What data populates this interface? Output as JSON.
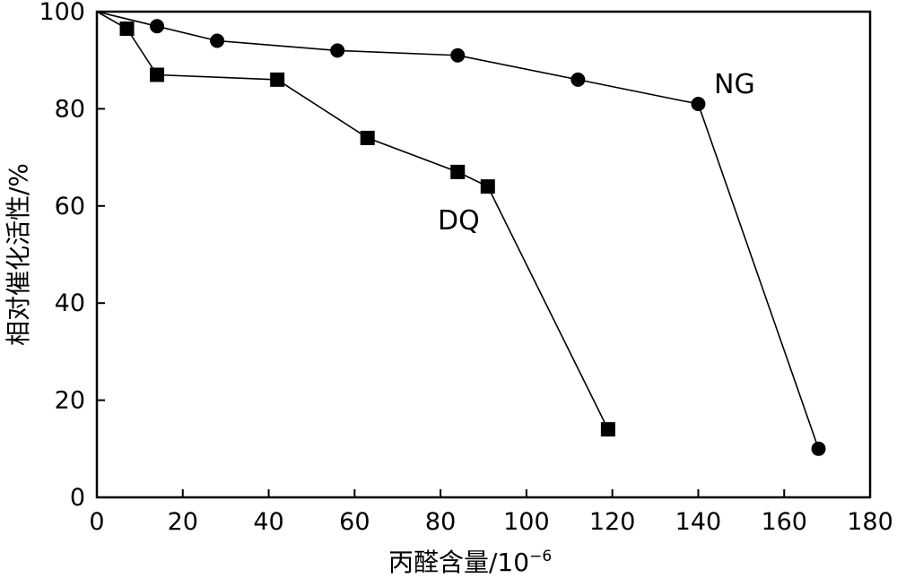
{
  "chart_data": {
    "type": "line",
    "xlabel": "丙醛含量/10",
    "xlabel_exponent": "−6",
    "ylabel": "相对催化活性/%",
    "xlim": [
      0,
      180
    ],
    "ylim": [
      0,
      100
    ],
    "xticks": [
      "0",
      "20",
      "40",
      "60",
      "80",
      "100",
      "120",
      "140",
      "160",
      "180"
    ],
    "yticks": [
      "0",
      "20",
      "40",
      "60",
      "80",
      "100"
    ],
    "grid": false,
    "series": [
      {
        "name": "NG",
        "marker": "circle",
        "color": "#000000",
        "x": [
          0,
          14,
          28,
          56,
          84,
          112,
          140,
          168
        ],
        "y": [
          100,
          97,
          94,
          92,
          91,
          86,
          81,
          10
        ]
      },
      {
        "name": "DQ",
        "marker": "square",
        "color": "#000000",
        "x": [
          0,
          7,
          14,
          42,
          63,
          84,
          91,
          119
        ],
        "y": [
          100,
          96.5,
          87,
          86,
          74,
          67,
          64,
          14
        ]
      }
    ]
  }
}
